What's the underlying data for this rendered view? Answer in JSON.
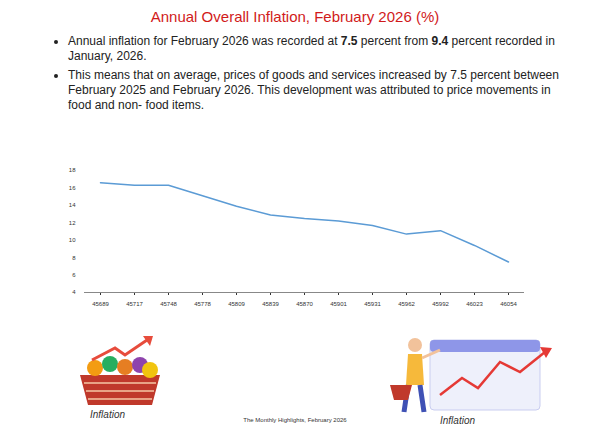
{
  "header": {
    "title": "Annual Overall Inflation, February 2026 (%)"
  },
  "bullets": [
    [
      {
        "text": "Annual inflation for February 2026 was recorded at "
      },
      {
        "text": "7.5",
        "bold": true
      },
      {
        "text": " percent from "
      },
      {
        "text": "9.4",
        "bold": true
      },
      {
        "text": " percent recorded in January, 2026."
      }
    ],
    [
      {
        "text": "This means that on average, prices of goods and services increased by 7.5 percent between February 2025 and February 2026. This development was attributed to price movements in food and non- food items."
      }
    ]
  ],
  "chart_data": {
    "type": "line",
    "categories": [
      "45689",
      "45717",
      "45748",
      "45778",
      "45809",
      "45839",
      "45870",
      "45901",
      "45931",
      "45962",
      "45992",
      "46023",
      "46054"
    ],
    "values": [
      16.6,
      16.3,
      16.3,
      15.1,
      13.9,
      12.9,
      12.5,
      12.2,
      11.7,
      10.7,
      11.1,
      9.4,
      7.5
    ],
    "color": "#5b9bd5",
    "ylim": [
      4,
      18
    ],
    "yticks": [
      4,
      6,
      8,
      10,
      12,
      14,
      16,
      18
    ],
    "grid": false
  },
  "icon_caption": "Inflation",
  "footer": "The Monthly Highlights, February 2026"
}
